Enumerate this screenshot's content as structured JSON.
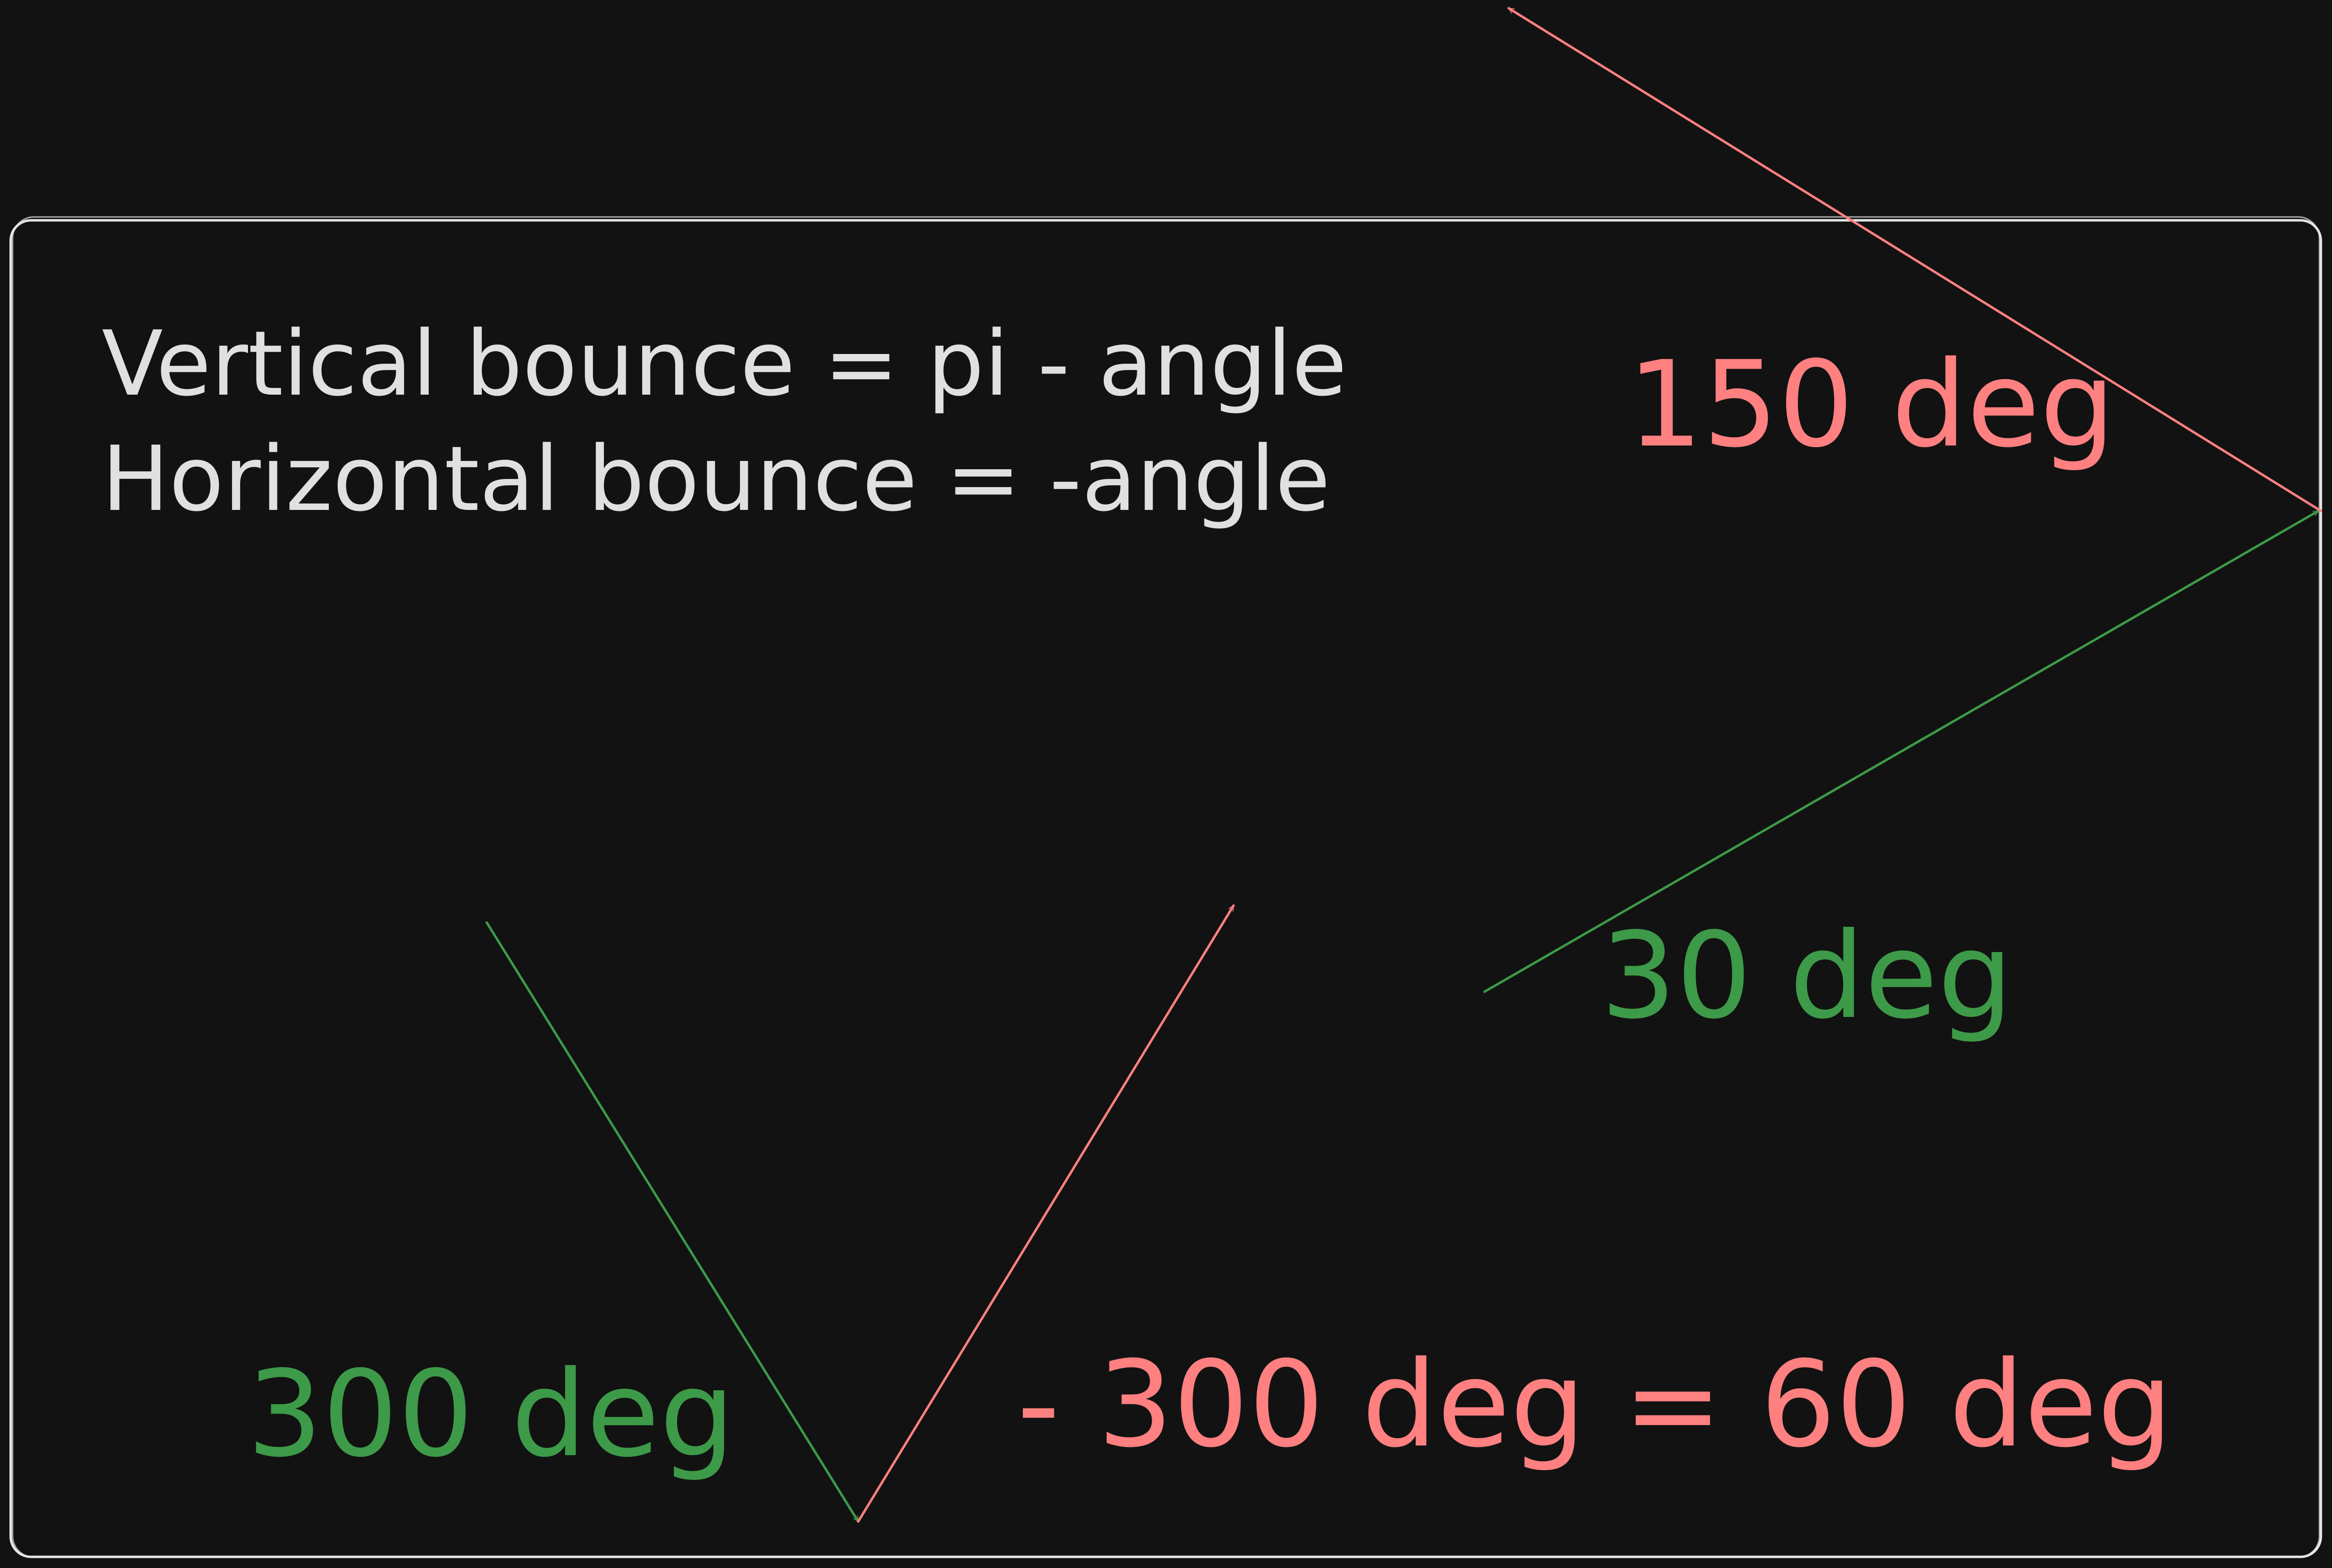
{
  "notes": {
    "line1": "Vertical bounce = pi - angle",
    "line2": "Horizontal bounce = -angle"
  },
  "labels": {
    "angle_150": "150 deg",
    "angle_30": "30 deg",
    "angle_300": "300 deg",
    "angle_neg300": "- 300 deg = 60 deg"
  },
  "colors": {
    "background": "#121212",
    "box_stroke": "#e6e6e6",
    "text": "#e0e0e0",
    "incoming": "#3d9a48",
    "reflected": "#ff8080"
  }
}
